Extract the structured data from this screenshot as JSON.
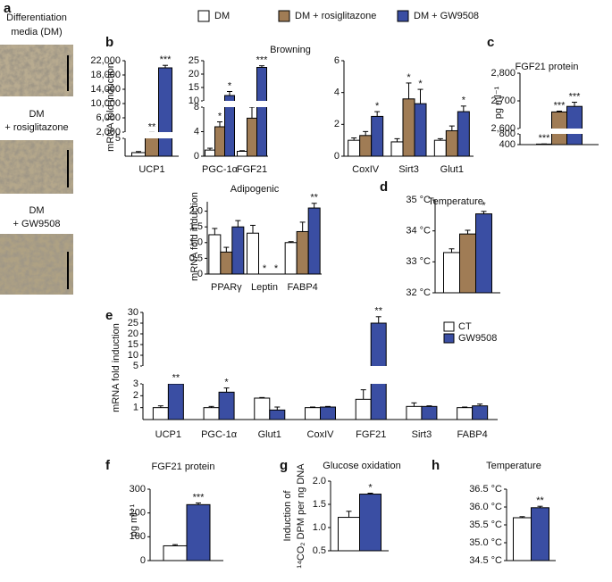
{
  "figure": {
    "panel_labels": [
      "a",
      "b",
      "c",
      "d",
      "e",
      "f",
      "g",
      "h"
    ],
    "group_title": "Browning",
    "images": [
      [
        "Differentiation",
        "media (DM)"
      ],
      [
        "DM",
        "+ rosiglitazone"
      ],
      [
        "DM",
        "+ GW9508"
      ]
    ],
    "legend": [
      {
        "name": "DM",
        "color": "#ffffff"
      },
      {
        "name": "DM + rosiglitazone",
        "color": "#a07c55"
      },
      {
        "name": "DM + GW9508",
        "color": "#3a4ea3"
      }
    ]
  },
  "chart_data": [
    {
      "type": "bar",
      "ylabel": "mRNA fold induction",
      "categories": [
        "UCP1"
      ],
      "segments": [
        {
          "ylim": [
            0,
            5
          ],
          "yticks": [
            5
          ]
        },
        {
          "ylim": [
            2000,
            22000
          ],
          "yticks": [
            {
              "value": 2000,
              "label": "2,000"
            },
            {
              "value": 6000,
              "label": "6,000"
            },
            {
              "value": 10000,
              "label": "10,000"
            },
            {
              "value": 14000,
              "label": "14,000"
            },
            {
              "value": 18000,
              "label": "18,000"
            },
            {
              "value": 22000,
              "label": "22,000"
            }
          ]
        }
      ],
      "series": [
        {
          "color": "#ffffff",
          "values": [
            1
          ],
          "errors": [
            0.3
          ],
          "significance": [
            null
          ]
        },
        {
          "color": "#a07c55",
          "values": [
            1800
          ],
          "errors": [
            100
          ],
          "significance": [
            "**"
          ]
        },
        {
          "color": "#3a4ea3",
          "values": [
            20000
          ],
          "errors": [
            700
          ],
          "significance": [
            "***"
          ]
        }
      ]
    },
    {
      "type": "bar",
      "categories": [
        "PGC-1α",
        "FGF21"
      ],
      "segments": [
        {
          "ylim": [
            0,
            8
          ],
          "yticks": [
            0,
            4,
            8
          ]
        },
        {
          "ylim": [
            10,
            25
          ],
          "yticks": [
            10,
            15,
            20,
            25
          ]
        }
      ],
      "series": [
        {
          "color": "#ffffff",
          "values": [
            1,
            0.8
          ],
          "errors": [
            0.3,
            0.1
          ],
          "significance": [
            null,
            null
          ]
        },
        {
          "color": "#a07c55",
          "values": [
            4.8,
            6.2
          ],
          "errors": [
            0.8,
            1.8
          ],
          "significance": [
            "*",
            null
          ]
        },
        {
          "color": "#3a4ea3",
          "values": [
            12,
            22.5
          ],
          "errors": [
            1.5,
            0.6
          ],
          "significance": [
            "*",
            "***"
          ]
        }
      ]
    },
    {
      "type": "bar",
      "categories": [
        "CoxIV",
        "Sirt3",
        "Glut1"
      ],
      "ylim": [
        0,
        6
      ],
      "yticks": [
        0,
        2,
        4,
        6
      ],
      "series": [
        {
          "color": "#ffffff",
          "values": [
            1,
            0.9,
            1
          ],
          "errors": [
            0.15,
            0.2,
            0.1
          ],
          "significance": [
            null,
            null,
            null
          ]
        },
        {
          "color": "#a07c55",
          "values": [
            1.3,
            3.6,
            1.6
          ],
          "errors": [
            0.25,
            1,
            0.3
          ],
          "significance": [
            null,
            "*",
            null
          ]
        },
        {
          "color": "#3a4ea3",
          "values": [
            2.5,
            3.3,
            2.8
          ],
          "errors": [
            0.3,
            0.9,
            0.35
          ],
          "significance": [
            "*",
            "*",
            "*"
          ]
        }
      ]
    },
    {
      "type": "bar",
      "title": "Adipogenic",
      "ylabel": "mRNA fold induction",
      "categories": [
        "PPARγ",
        "Leptin",
        "FABP4"
      ],
      "ylim": [
        0,
        2.3
      ],
      "yticks": [
        0,
        0.5,
        {
          "value": 1,
          "label": "1.0"
        },
        1.5,
        {
          "value": 2,
          "label": "2.0"
        }
      ],
      "series": [
        {
          "color": "#ffffff",
          "values": [
            1.25,
            1.3,
            1
          ],
          "errors": [
            0.2,
            0.25,
            0.03
          ],
          "significance": [
            null,
            null,
            null
          ]
        },
        {
          "color": "#a07c55",
          "values": [
            0.7,
            0,
            1.35
          ],
          "errors": [
            0.15,
            0,
            0.3
          ],
          "significance": [
            null,
            "*",
            null
          ]
        },
        {
          "color": "#3a4ea3",
          "values": [
            1.5,
            0,
            2.1
          ],
          "errors": [
            0.2,
            0,
            0.15
          ],
          "significance": [
            null,
            "*",
            "**"
          ]
        }
      ]
    },
    {
      "type": "bar",
      "title": "FGF21 protein",
      "ylabel": "pg ml⁻¹",
      "categories": [
        null
      ],
      "segments": [
        {
          "ylim": [
            400,
            800
          ],
          "yticks": [
            400,
            800
          ]
        },
        {
          "ylim": [
            2600,
            2800
          ],
          "yticks": [
            {
              "value": 2600,
              "label": "2,600"
            },
            {
              "value": 2700,
              "label": "2,700"
            },
            {
              "value": 2800,
              "label": "2,800"
            }
          ]
        }
      ],
      "series": [
        {
          "color": "#ffffff",
          "values": [
            420
          ],
          "errors": [
            5
          ],
          "significance": [
            "***"
          ]
        },
        {
          "color": "#a07c55",
          "values": [
            2660
          ],
          "errors": [
            3
          ],
          "significance": [
            "***"
          ]
        },
        {
          "color": "#3a4ea3",
          "values": [
            2680
          ],
          "errors": [
            15
          ],
          "significance": [
            "***"
          ]
        }
      ]
    },
    {
      "type": "bar",
      "title": "Temperature",
      "categories": [
        null
      ],
      "ylim": [
        32,
        35
      ],
      "yticks": [
        {
          "value": 32,
          "label": "32 °C"
        },
        {
          "value": 33,
          "label": "33 °C"
        },
        {
          "value": 34,
          "label": "34 °C"
        },
        {
          "value": 35,
          "label": "35 °C"
        }
      ],
      "series": [
        {
          "color": "#ffffff",
          "values": [
            33.3
          ],
          "errors": [
            0.12
          ],
          "significance": [
            null
          ]
        },
        {
          "color": "#a07c55",
          "values": [
            33.9
          ],
          "errors": [
            0.12
          ],
          "significance": [
            null
          ]
        },
        {
          "color": "#3a4ea3",
          "values": [
            34.55
          ],
          "errors": [
            0.08
          ],
          "significance": [
            "*"
          ]
        }
      ]
    },
    {
      "type": "bar",
      "ylabel": "mRNA fold induction",
      "categories": [
        "UCP1",
        "PGC-1α",
        "Glut1",
        "CoxIV",
        "FGF21",
        "Sirt3",
        "FABP4"
      ],
      "segments": [
        {
          "ylim": [
            0,
            3
          ],
          "yticks": [
            1,
            2,
            3
          ]
        },
        {
          "ylim": [
            5,
            30
          ],
          "yticks": [
            5,
            10,
            15,
            20,
            25,
            30
          ]
        }
      ],
      "series": [
        {
          "name": "CT",
          "color": "#ffffff",
          "values": [
            1,
            1,
            1.8,
            1,
            1.7,
            1.1,
            1
          ],
          "errors": [
            0.15,
            0.1,
            0.05,
            0.05,
            0.8,
            0.3,
            0.05
          ],
          "significance": [
            null,
            null,
            null,
            null,
            null,
            null,
            null
          ]
        },
        {
          "name": "GW9508",
          "color": "#3a4ea3",
          "values": [
            3,
            2.3,
            0.8,
            1.05,
            25,
            1.1,
            1.15
          ],
          "errors": [
            0.05,
            0.35,
            0.25,
            0.05,
            3,
            0.05,
            0.15
          ],
          "significance": [
            "**",
            "*",
            null,
            null,
            "**",
            null,
            null
          ]
        }
      ]
    },
    {
      "type": "bar",
      "title": "FGF21 protein",
      "ylabel": "pg ml⁻¹",
      "categories": [
        null
      ],
      "ylim": [
        0,
        300
      ],
      "yticks": [
        0,
        100,
        200,
        300
      ],
      "series": [
        {
          "color": "#ffffff",
          "values": [
            62
          ],
          "errors": [
            5
          ],
          "significance": [
            null
          ]
        },
        {
          "color": "#3a4ea3",
          "values": [
            235
          ],
          "errors": [
            7
          ],
          "significance": [
            "***"
          ]
        }
      ]
    },
    {
      "type": "bar",
      "title": "Glucose oxidation",
      "ylabel": [
        "Induction of",
        "¹⁴CO₂ DPM per ng DNA"
      ],
      "categories": [
        null
      ],
      "ylim": [
        0.5,
        2
      ],
      "yticks": [
        0.5,
        {
          "value": 1,
          "label": "1.0"
        },
        1.5,
        {
          "value": 2,
          "label": "2.0"
        }
      ],
      "series": [
        {
          "color": "#ffffff",
          "values": [
            1.22
          ],
          "errors": [
            0.13
          ],
          "significance": [
            null
          ]
        },
        {
          "color": "#3a4ea3",
          "values": [
            1.72
          ],
          "errors": [
            0.02
          ],
          "significance": [
            "*"
          ]
        }
      ]
    },
    {
      "type": "bar",
      "title": "Temperature",
      "categories": [
        null
      ],
      "ylim": [
        34.5,
        36.5
      ],
      "yticks": [
        {
          "value": 34.5,
          "label": "34.5 °C"
        },
        {
          "value": 35,
          "label": "35.0 °C"
        },
        {
          "value": 35.5,
          "label": "35.5 °C"
        },
        {
          "value": 36,
          "label": "36.0 °C"
        },
        {
          "value": 36.5,
          "label": "36.5 °C"
        }
      ],
      "series": [
        {
          "color": "#ffffff",
          "values": [
            35.7
          ],
          "errors": [
            0.03
          ],
          "significance": [
            null
          ]
        },
        {
          "color": "#3a4ea3",
          "values": [
            35.98
          ],
          "errors": [
            0.04
          ],
          "significance": [
            "**"
          ]
        }
      ]
    }
  ]
}
